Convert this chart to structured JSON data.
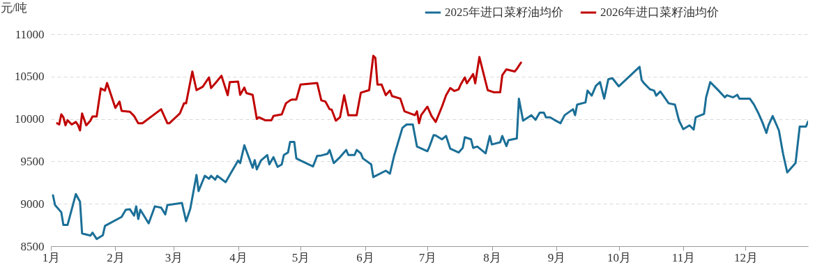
{
  "chart_data": {
    "type": "line",
    "ylabel": "元/吨",
    "legend": "top right",
    "grid": "y",
    "line_style": "solid",
    "marker": "none",
    "xlim": [
      "--01-01",
      "--12-31"
    ],
    "xticks": [
      {
        "value": "--01-01",
        "label": "1月"
      },
      {
        "value": "--02-01",
        "label": "2月"
      },
      {
        "value": "--03-01",
        "label": "3月"
      },
      {
        "value": "--04-01",
        "label": "4月"
      },
      {
        "value": "--05-01",
        "label": "5月"
      },
      {
        "value": "--06-01",
        "label": "6月"
      },
      {
        "value": "--07-01",
        "label": "7月"
      },
      {
        "value": "--08-01",
        "label": "8月"
      },
      {
        "value": "--09-01",
        "label": "9月"
      },
      {
        "value": "--10-01",
        "label": "10月"
      },
      {
        "value": "--11-01",
        "label": "11月"
      },
      {
        "value": "--12-01",
        "label": "12月"
      }
    ],
    "ylim": [
      8500,
      11000
    ],
    "yticks": [
      8500,
      9000,
      9500,
      10000,
      10500,
      11000
    ],
    "series": [
      {
        "name": "2025年进口菜籽油均价",
        "color": "#1b6f97",
        "x": [
          "--01-02",
          "--01-03",
          "--01-06",
          "--01-07",
          "--01-09",
          "--01-13",
          "--01-15",
          "--01-16",
          "--01-20",
          "--01-21",
          "--01-23",
          "--01-26",
          "--01-27",
          "--02-04",
          "--02-06",
          "--02-08",
          "--02-10",
          "--02-11",
          "--02-12",
          "--02-13",
          "--02-17",
          "--02-20",
          "--02-23",
          "--02-25",
          "--02-26",
          "--03-05",
          "--03-07",
          "--03-09",
          "--03-12",
          "--03-13",
          "--03-16",
          "--03-18",
          "--03-19",
          "--03-21",
          "--03-22",
          "--03-26",
          "--03-28",
          "--03-30",
          "--04-01",
          "--04-02",
          "--04-04",
          "--04-08",
          "--04-09",
          "--04-10",
          "--04-12",
          "--04-15",
          "--04-16",
          "--04-18",
          "--04-20",
          "--04-22",
          "--04-23",
          "--04-25",
          "--04-26",
          "--04-28",
          "--04-29",
          "--05-01",
          "--05-07",
          "--05-09",
          "--05-11",
          "--05-14",
          "--05-15",
          "--05-17",
          "--05-20",
          "--05-23",
          "--05-24",
          "--05-27",
          "--05-28",
          "--05-30",
          "--05-31",
          "--06-04",
          "--06-05",
          "--06-11",
          "--06-13",
          "--06-15",
          "--06-19",
          "--06-21",
          "--06-24",
          "--06-26",
          "--07-01",
          "--07-02",
          "--07-04",
          "--07-05",
          "--07-08",
          "--07-10",
          "--07-12",
          "--07-16",
          "--07-18",
          "--07-19",
          "--07-22",
          "--07-23",
          "--07-25",
          "--07-29",
          "--07-31",
          "--08-01",
          "--08-05",
          "--08-06",
          "--08-08",
          "--08-09",
          "--08-13",
          "--08-14",
          "--08-16",
          "--08-20",
          "--08-22",
          "--08-24",
          "--08-26",
          "--08-27",
          "--08-29",
          "--08-31",
          "--09-03",
          "--09-05",
          "--09-09",
          "--09-10",
          "--09-11",
          "--09-15",
          "--09-16",
          "--09-18",
          "--09-20",
          "--09-22",
          "--09-24",
          "--09-26",
          "--09-28",
          "--10-01",
          "--10-11",
          "--10-12",
          "--10-13",
          "--10-16",
          "--10-18",
          "--10-19",
          "--10-21",
          "--10-23",
          "--10-25",
          "--10-28",
          "--10-30",
          "--11-01",
          "--11-04",
          "--11-06",
          "--11-07",
          "--11-11",
          "--11-12",
          "--11-14",
          "--11-18",
          "--11-21",
          "--11-22",
          "--11-25",
          "--11-27",
          "--11-28",
          "--12-03",
          "--12-05",
          "--12-07",
          "--12-09",
          "--12-11",
          "--12-12",
          "--12-14",
          "--12-17",
          "--12-19",
          "--12-21",
          "--12-25",
          "--12-27",
          "--12-30",
          "--12-31"
        ],
        "values": [
          9100,
          8985,
          8900,
          8750,
          8750,
          9115,
          9025,
          8650,
          8625,
          8660,
          8585,
          8630,
          8740,
          8845,
          8930,
          8935,
          8860,
          8970,
          8820,
          8930,
          8770,
          8970,
          8955,
          8875,
          8985,
          9010,
          8795,
          8940,
          9340,
          9150,
          9330,
          9295,
          9330,
          9285,
          9330,
          9255,
          9340,
          9425,
          9510,
          9480,
          9690,
          9425,
          9515,
          9405,
          9510,
          9575,
          9465,
          9550,
          9435,
          9465,
          9575,
          9605,
          9730,
          9730,
          9535,
          9510,
          9440,
          9565,
          9570,
          9590,
          9635,
          9480,
          9550,
          9635,
          9575,
          9575,
          9635,
          9595,
          9535,
          9465,
          9315,
          9390,
          9355,
          9565,
          9895,
          9935,
          9935,
          9675,
          9620,
          9675,
          9810,
          9805,
          9760,
          9800,
          9650,
          9605,
          9660,
          9785,
          9760,
          9660,
          9675,
          9595,
          9800,
          9700,
          9725,
          9800,
          9680,
          9750,
          9770,
          10240,
          9980,
          10045,
          9990,
          10075,
          10075,
          10020,
          10020,
          9990,
          9950,
          10045,
          10115,
          10045,
          10170,
          10195,
          10335,
          10275,
          10390,
          10435,
          10240,
          10470,
          10480,
          10385,
          10615,
          10460,
          10425,
          10350,
          10335,
          10275,
          10325,
          10255,
          10185,
          10170,
          9980,
          9880,
          9925,
          9875,
          10020,
          10060,
          10255,
          10435,
          10335,
          10255,
          10280,
          10255,
          10285,
          10240,
          10240,
          10170,
          10075,
          9965,
          9835,
          9925,
          10035,
          9865,
          9590,
          9370,
          9480,
          9910,
          9910,
          9970
        ]
      },
      {
        "name": "2026年进口菜籽油均价",
        "color": "#c00000",
        "x": [
          "--01-04",
          "--01-05",
          "--01-06",
          "--01-07",
          "--01-08",
          "--01-09",
          "--01-11",
          "--01-13",
          "--01-14",
          "--01-15",
          "--01-16",
          "--01-18",
          "--01-20",
          "--01-21",
          "--01-23",
          "--01-25",
          "--01-27",
          "--01-28",
          "--02-01",
          "--02-03",
          "--02-04",
          "--02-08",
          "--02-10",
          "--02-12",
          "--02-14",
          "--02-23",
          "--02-26",
          "--02-27",
          "--03-04",
          "--03-06",
          "--03-07",
          "--03-10",
          "--03-12",
          "--03-15",
          "--03-18",
          "--03-19",
          "--03-21",
          "--03-24",
          "--03-27",
          "--03-28",
          "--04-01",
          "--04-02",
          "--04-04",
          "--04-05",
          "--04-08",
          "--04-10",
          "--04-11",
          "--04-14",
          "--04-17",
          "--04-18",
          "--04-22",
          "--04-24",
          "--04-26",
          "--04-27",
          "--04-29",
          "--05-01",
          "--05-09",
          "--05-11",
          "--05-13",
          "--05-15",
          "--05-16",
          "--05-18",
          "--05-20",
          "--05-22",
          "--05-24",
          "--05-28",
          "--05-30",
          "--06-03",
          "--06-05",
          "--06-06",
          "--06-07",
          "--06-09",
          "--06-11",
          "--06-13",
          "--06-14",
          "--06-18",
          "--06-20",
          "--06-25",
          "--06-26",
          "--06-27",
          "--06-28",
          "--07-01",
          "--07-03",
          "--07-05",
          "--07-08",
          "--07-10",
          "--07-12",
          "--07-14",
          "--07-16",
          "--07-17",
          "--07-19",
          "--07-20",
          "--07-23",
          "--07-24",
          "--07-26",
          "--07-30",
          "--08-02",
          "--08-05",
          "--08-06",
          "--08-08",
          "--08-12",
          "--08-13",
          "--08-15"
        ],
        "values": [
          9950,
          9935,
          10055,
          10020,
          9925,
          9985,
          9935,
          9965,
          9930,
          9865,
          10065,
          9925,
          9980,
          10030,
          10030,
          10360,
          10335,
          10425,
          10130,
          10205,
          10095,
          10085,
          10035,
          9950,
          9950,
          10115,
          9950,
          9950,
          10065,
          10185,
          10185,
          10560,
          10340,
          10380,
          10490,
          10365,
          10420,
          10510,
          10280,
          10435,
          10440,
          10285,
          10370,
          10305,
          10285,
          10000,
          10020,
          9985,
          9985,
          10035,
          10055,
          10185,
          10220,
          10230,
          10230,
          10405,
          10425,
          10220,
          10205,
          10115,
          10110,
          9980,
          10020,
          10280,
          10045,
          10045,
          10310,
          10340,
          10745,
          10720,
          10405,
          10405,
          10280,
          10335,
          10270,
          10240,
          10090,
          10045,
          10090,
          9950,
          10045,
          10145,
          10035,
          9965,
          10145,
          10280,
          10365,
          10330,
          10350,
          10405,
          10490,
          10420,
          10530,
          10420,
          10730,
          10340,
          10315,
          10315,
          10515,
          10585,
          10560,
          10590,
          10665
        ]
      }
    ]
  }
}
